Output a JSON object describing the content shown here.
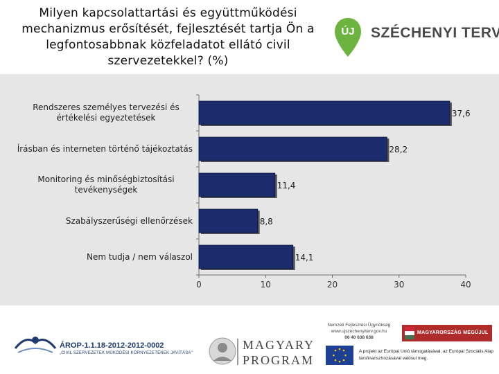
{
  "header": {
    "title_lines": [
      "Milyen kapcsolattartási és együttműködési",
      "mechanizmus erősítését, fejlesztését tartja Ön a",
      "legfontosabbnak közfeladatot ellátó civil",
      "szervezetekkel? (%)"
    ],
    "logo_badge": "ÚJ",
    "logo_brand": "SZÉCHENYI TERV"
  },
  "chart_data": {
    "type": "bar",
    "orientation": "horizontal",
    "title": "Milyen kapcsolattartási és együttműködési mechanizmus erősítését, fejlesztését tartja Ön a legfontosabbnak közfeladatot ellátó civil szervezetekkel? (%)",
    "categories": [
      [
        "Rendszeres személyes tervezési és",
        "értékelési egyeztetések"
      ],
      [
        "Írásban és interneten történő tájékoztatás"
      ],
      [
        "Monitoring és minőségbiztosítási",
        "tevékenységek"
      ],
      [
        "Szabályszerűségi ellenőrzések"
      ],
      [
        "Nem tudja / nem válaszol"
      ]
    ],
    "values": [
      37.6,
      28.2,
      11.4,
      8.8,
      14.1
    ],
    "value_labels": [
      "37,6",
      "28,2",
      "11,4",
      "8,8",
      "14,1"
    ],
    "xlim": [
      0,
      40
    ],
    "xticks": [
      "0",
      "10",
      "20",
      "30",
      "40"
    ],
    "bar_color": "#1b2b6b",
    "panel_color": "#e6e6e6",
    "grid": false
  },
  "footer": {
    "arop_code": "ÁROP-1.1.18-2012-2012-0002",
    "arop_subtitle": "„CIVIL SZERVEZETEK MŰKÖDÉSI KÖRNYEZETÉNEK JAVÍTÁSA\"",
    "magyary_line1": "MAGYARY",
    "magyary_line2": "PROGRAM",
    "nfu_lines": [
      "Nemzeti Fejlesztési Ügynökség",
      "www.ujszechenyiterv.gov.hu",
      "06 40 638 638"
    ],
    "ministry_label": "MAGYARORSZÁG MEGÚJUL",
    "eu_text": "A projekt az Európai Unió támogatásával, az Európai Szociális Alap társfinanszírozásával valósul meg.",
    "colors": {
      "arop_blue": "#1f3a6e",
      "ministry_red": "#ae2c2c",
      "eu_blue": "#1d3f94",
      "logo_green": "#6cb33f"
    }
  }
}
